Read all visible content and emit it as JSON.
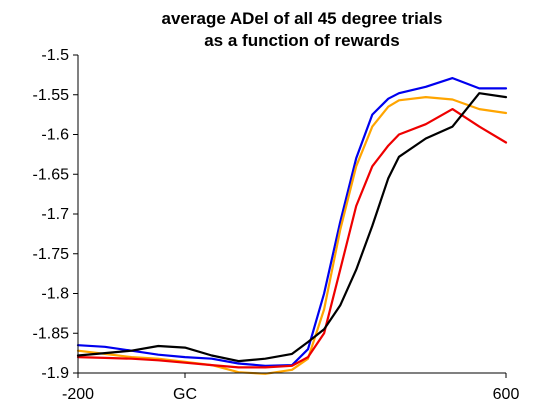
{
  "chart_data": {
    "type": "line",
    "title": [
      "average ADel of all 45 degree trials",
      "as a function of rewards"
    ],
    "xlabel": "",
    "ylabel": "",
    "xlim": [
      -200,
      600
    ],
    "ylim": [
      -1.9,
      -1.5
    ],
    "x_tick_labels": [
      {
        "label": "-200",
        "x": -200
      },
      {
        "label": "GC",
        "x": 0
      },
      {
        "label": "600",
        "x": 600
      }
    ],
    "y_ticks": [
      -1.5,
      -1.55,
      -1.6,
      -1.65,
      -1.7,
      -1.75,
      -1.8,
      -1.85,
      -1.9
    ],
    "y_tick_labels": [
      "-1.5",
      "-1.55",
      "-1.6",
      "-1.65",
      "-1.7",
      "-1.75",
      "-1.8",
      "-1.85",
      "-1.9"
    ],
    "grid": false,
    "legend": "none",
    "x": [
      -200,
      -150,
      -100,
      -50,
      0,
      50,
      100,
      150,
      200,
      230,
      260,
      290,
      320,
      350,
      380,
      400,
      450,
      500,
      550,
      600
    ],
    "series": [
      {
        "color": "#0000ee",
        "values": [
          -1.865,
          -1.867,
          -1.872,
          -1.877,
          -1.88,
          -1.882,
          -1.888,
          -1.891,
          -1.89,
          -1.87,
          -1.8,
          -1.71,
          -1.63,
          -1.575,
          -1.555,
          -1.548,
          -1.54,
          -1.529,
          -1.542,
          -1.542
        ]
      },
      {
        "color": "#ffa500",
        "values": [
          -1.872,
          -1.876,
          -1.88,
          -1.882,
          -1.886,
          -1.89,
          -1.899,
          -1.901,
          -1.896,
          -1.882,
          -1.82,
          -1.72,
          -1.64,
          -1.59,
          -1.565,
          -1.557,
          -1.553,
          -1.556,
          -1.568,
          -1.573
        ]
      },
      {
        "color": "#ee0000",
        "values": [
          -1.88,
          -1.881,
          -1.882,
          -1.884,
          -1.887,
          -1.89,
          -1.893,
          -1.893,
          -1.891,
          -1.88,
          -1.85,
          -1.77,
          -1.69,
          -1.64,
          -1.614,
          -1.6,
          -1.587,
          -1.568,
          -1.59,
          -1.61
        ]
      },
      {
        "color": "#000000",
        "values": [
          -1.878,
          -1.875,
          -1.872,
          -1.866,
          -1.868,
          -1.878,
          -1.885,
          -1.882,
          -1.876,
          -1.861,
          -1.845,
          -1.815,
          -1.77,
          -1.715,
          -1.655,
          -1.628,
          -1.605,
          -1.59,
          -1.548,
          -1.553
        ]
      }
    ]
  }
}
